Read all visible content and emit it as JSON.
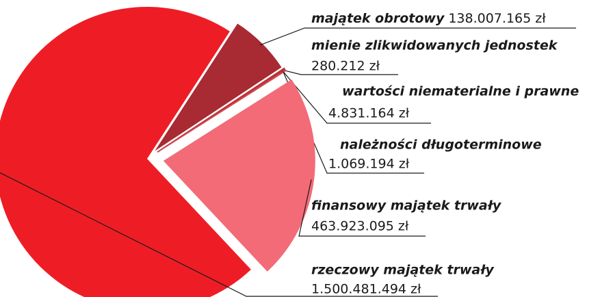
{
  "chart_data": {
    "type": "pie",
    "labels": [
      "majątek obrotowy",
      "mienie zlikwidowanych jednostek",
      "wartości niematerialne i prawne",
      "należności długoterminowe",
      "finansowy majątek trwały",
      "rzeczowy majątek trwały"
    ],
    "values": [
      138007165,
      280212,
      4831164,
      1069194,
      463923095,
      1500481494
    ],
    "value_labels": [
      "138.007.165 zł",
      "280.212 zł",
      "4.831.164 zł",
      "1.069.194 zł",
      "463.923.095 zł",
      "1.500.481.494 zł"
    ],
    "colors": [
      "#a82a33",
      "#c8343c",
      "#b8323a",
      "#d4494f",
      "#f26b77",
      "#ee1d25"
    ]
  }
}
